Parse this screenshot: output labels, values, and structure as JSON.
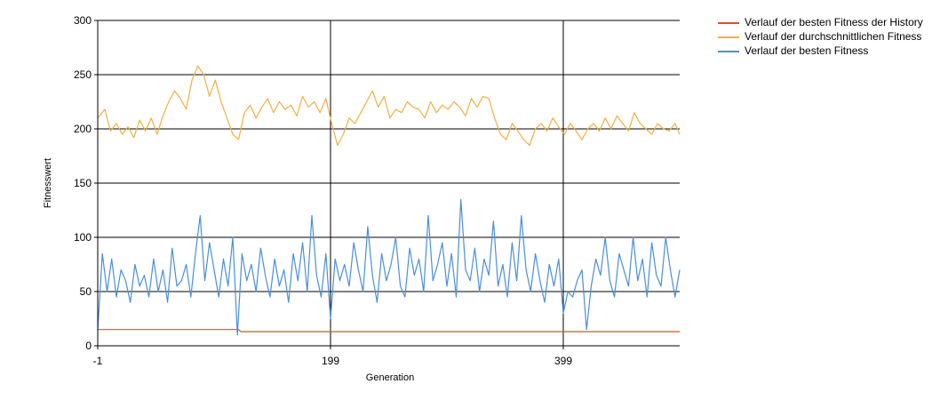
{
  "chart_data": {
    "type": "line",
    "title": "",
    "xlabel": "Generation",
    "ylabel": "Fitnesswert",
    "xlim": [
      -1,
      499
    ],
    "ylim": [
      0,
      300
    ],
    "x_ticks": [
      -1,
      199,
      399
    ],
    "y_ticks": [
      0,
      50,
      100,
      150,
      200,
      250,
      300
    ],
    "grid": true,
    "legend_position": "top-right",
    "series": [
      {
        "name": "Verlauf der besten Fitness der History",
        "color": "#d9531e",
        "x": [
          -1,
          120,
          122,
          499
        ],
        "y": [
          15,
          15,
          13,
          13
        ]
      },
      {
        "name": "Verlauf der durchschnittlichen Fitness",
        "color": "#f0b040",
        "x": [
          -1,
          5,
          10,
          15,
          20,
          25,
          30,
          35,
          40,
          45,
          50,
          55,
          60,
          65,
          70,
          75,
          80,
          85,
          90,
          95,
          100,
          105,
          110,
          115,
          120,
          125,
          130,
          135,
          140,
          145,
          150,
          155,
          160,
          165,
          170,
          175,
          180,
          185,
          190,
          195,
          200,
          205,
          210,
          215,
          220,
          225,
          230,
          235,
          240,
          245,
          250,
          255,
          260,
          265,
          270,
          275,
          280,
          285,
          290,
          295,
          300,
          305,
          310,
          315,
          320,
          325,
          330,
          335,
          340,
          345,
          350,
          355,
          360,
          365,
          370,
          375,
          380,
          385,
          390,
          395,
          400,
          405,
          410,
          415,
          420,
          425,
          430,
          435,
          440,
          445,
          450,
          455,
          460,
          465,
          470,
          475,
          480,
          485,
          490,
          495,
          499
        ],
        "y": [
          210,
          218,
          198,
          205,
          195,
          202,
          192,
          208,
          198,
          210,
          195,
          212,
          225,
          235,
          228,
          218,
          245,
          258,
          250,
          230,
          245,
          225,
          210,
          195,
          190,
          215,
          222,
          210,
          220,
          228,
          215,
          225,
          218,
          222,
          212,
          230,
          220,
          225,
          215,
          228,
          205,
          185,
          195,
          210,
          205,
          215,
          225,
          235,
          220,
          230,
          210,
          218,
          215,
          225,
          220,
          218,
          210,
          225,
          215,
          222,
          218,
          225,
          220,
          212,
          228,
          220,
          230,
          228,
          210,
          195,
          190,
          205,
          198,
          190,
          185,
          200,
          205,
          198,
          210,
          202,
          195,
          205,
          198,
          190,
          200,
          205,
          198,
          210,
          200,
          212,
          205,
          198,
          215,
          205,
          200,
          195,
          205,
          200,
          198,
          205,
          195
        ]
      },
      {
        "name": "Verlauf der besten Fitness",
        "color": "#4a8fdc",
        "x": [
          -1,
          3,
          7,
          11,
          15,
          19,
          23,
          27,
          31,
          35,
          39,
          43,
          47,
          51,
          55,
          59,
          63,
          67,
          71,
          75,
          79,
          83,
          87,
          91,
          95,
          99,
          103,
          107,
          111,
          115,
          119,
          123,
          127,
          131,
          135,
          139,
          143,
          147,
          151,
          155,
          159,
          163,
          167,
          171,
          175,
          179,
          183,
          187,
          191,
          195,
          199,
          203,
          207,
          211,
          215,
          219,
          223,
          227,
          231,
          235,
          239,
          243,
          247,
          251,
          255,
          259,
          263,
          267,
          271,
          275,
          279,
          283,
          287,
          291,
          295,
          299,
          303,
          307,
          311,
          315,
          319,
          323,
          327,
          331,
          335,
          339,
          343,
          347,
          351,
          355,
          359,
          363,
          367,
          371,
          375,
          379,
          383,
          387,
          391,
          395,
          399,
          403,
          407,
          411,
          415,
          419,
          423,
          427,
          431,
          435,
          439,
          443,
          447,
          451,
          455,
          459,
          463,
          467,
          471,
          475,
          479,
          483,
          487,
          491,
          495,
          499
        ],
        "y": [
          15,
          85,
          50,
          80,
          45,
          70,
          60,
          40,
          75,
          55,
          65,
          45,
          80,
          50,
          70,
          40,
          90,
          55,
          60,
          75,
          45,
          85,
          120,
          60,
          95,
          70,
          45,
          80,
          55,
          100,
          10,
          85,
          60,
          75,
          50,
          90,
          65,
          45,
          80,
          55,
          70,
          40,
          85,
          60,
          95,
          50,
          120,
          65,
          45,
          85,
          25,
          80,
          60,
          75,
          55,
          95,
          70,
          50,
          110,
          65,
          40,
          85,
          60,
          75,
          100,
          55,
          45,
          90,
          65,
          80,
          50,
          120,
          60,
          75,
          95,
          55,
          85,
          45,
          135,
          70,
          60,
          90,
          50,
          80,
          65,
          115,
          55,
          75,
          45,
          95,
          60,
          120,
          70,
          50,
          85,
          60,
          40,
          75,
          55,
          80,
          30,
          50,
          45,
          60,
          70,
          15,
          55,
          80,
          65,
          100,
          60,
          45,
          85,
          70,
          55,
          100,
          60,
          80,
          45,
          95,
          65,
          55,
          100,
          70,
          45,
          70
        ]
      }
    ]
  }
}
